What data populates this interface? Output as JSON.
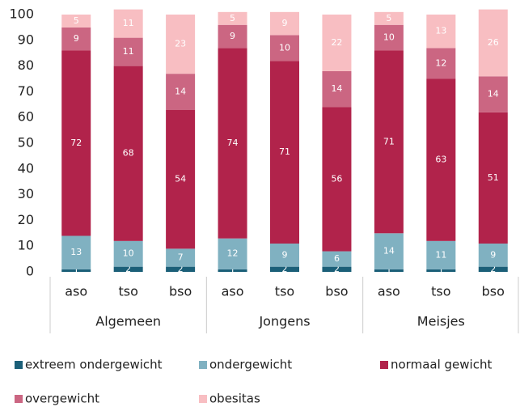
{
  "chart_data": {
    "type": "stacked-bar",
    "categories": [
      "aso",
      "tso",
      "bso",
      "aso",
      "tso",
      "bso",
      "aso",
      "tso",
      "bso"
    ],
    "groups": [
      "Algemeen",
      "Jongens",
      "Meisjes"
    ],
    "series": [
      {
        "name": "extreem ondergewicht",
        "color": "#1b5f78",
        "values": [
          1,
          2,
          2,
          1,
          2,
          2,
          1,
          1,
          2
        ]
      },
      {
        "name": "ondergewicht",
        "color": "#80b1c1",
        "values": [
          13,
          10,
          7,
          12,
          9,
          6,
          14,
          11,
          9
        ]
      },
      {
        "name": "normaal gewicht",
        "color": "#b1234b",
        "values": [
          72,
          68,
          54,
          74,
          71,
          56,
          71,
          63,
          51
        ]
      },
      {
        "name": "overgewicht",
        "color": "#cb6682",
        "values": [
          9,
          11,
          14,
          9,
          10,
          14,
          10,
          12,
          14
        ]
      },
      {
        "name": "obesitas",
        "color": "#f8bec2",
        "values": [
          5,
          11,
          23,
          5,
          9,
          22,
          5,
          13,
          26
        ]
      }
    ],
    "ylim": [
      0,
      100
    ],
    "yticks": [
      0,
      10,
      20,
      30,
      40,
      50,
      60,
      70,
      80,
      90,
      100
    ],
    "grid": false
  }
}
